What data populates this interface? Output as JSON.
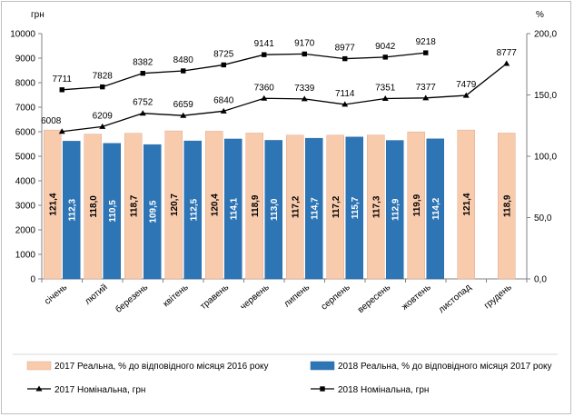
{
  "chart_data": {
    "type": "bar",
    "left_axis_unit": "грн",
    "right_axis_unit": "%",
    "left_ticks": [
      "0",
      "1000",
      "2000",
      "3000",
      "4000",
      "5000",
      "6000",
      "7000",
      "8000",
      "9000",
      "10000"
    ],
    "right_ticks": [
      "0,0",
      "50,0",
      "100,0",
      "150,0",
      "200,0"
    ],
    "ylim_left": [
      0,
      10000
    ],
    "ylim_right": [
      0,
      200
    ],
    "categories": [
      "січень",
      "лютий",
      "березень",
      "квітень",
      "травень",
      "червень",
      "липень",
      "серпень",
      "вересень",
      "жовтень",
      "листопад",
      "грудень"
    ],
    "series": [
      {
        "name": "2017 Реальна, % до відповідного місяця 2016 року",
        "kind": "bar",
        "axis": "right",
        "color": "#f8cbad",
        "values": [
          121.4,
          118.0,
          118.7,
          120.7,
          120.4,
          118.9,
          117.2,
          117.2,
          117.3,
          119.9,
          121.4,
          118.9
        ],
        "labels": [
          "121,4",
          "118,0",
          "118,7",
          "120,7",
          "120,4",
          "118,9",
          "117,2",
          "117,2",
          "117,3",
          "119,9",
          "121,4",
          "118,9"
        ]
      },
      {
        "name": "2018 Реальна, % до відповідного місяця 2017 року",
        "kind": "bar",
        "axis": "right",
        "color": "#2e75b6",
        "values": [
          112.3,
          110.5,
          109.5,
          112.5,
          114.1,
          113.0,
          114.7,
          115.7,
          112.9,
          114.2,
          null,
          null
        ],
        "labels": [
          "112,3",
          "110,5",
          "109,5",
          "112,5",
          "114,1",
          "113,0",
          "114,7",
          "115,7",
          "112,9",
          "114,2",
          null,
          null
        ]
      },
      {
        "name": "2017 Номінальна, грн",
        "kind": "line",
        "axis": "left",
        "marker": "triangle",
        "color": "#000000",
        "values": [
          6008,
          6209,
          6752,
          6659,
          6840,
          7360,
          7339,
          7114,
          7351,
          7377,
          7479,
          8777
        ],
        "labels": [
          "6008",
          "6209",
          "6752",
          "6659",
          "6840",
          "7360",
          "7339",
          "7114",
          "7351",
          "7377",
          "7479",
          "8777"
        ]
      },
      {
        "name": "2018 Номінальна, грн",
        "kind": "line",
        "axis": "left",
        "marker": "square",
        "color": "#000000",
        "values": [
          7711,
          7828,
          8382,
          8480,
          8725,
          9141,
          9170,
          8977,
          9042,
          9218,
          null,
          null
        ],
        "labels": [
          "7711",
          "7828",
          "8382",
          "8480",
          "8725",
          "9141",
          "9170",
          "8977",
          "9042",
          "9218",
          null,
          null
        ]
      }
    ]
  }
}
